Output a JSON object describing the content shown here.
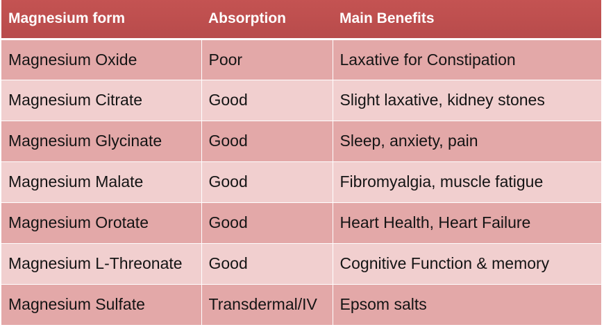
{
  "table": {
    "headers": [
      "Magnesium form",
      "Absorption",
      "Main Benefits"
    ],
    "rows": [
      [
        "Magnesium Oxide",
        "Poor",
        "Laxative for Constipation"
      ],
      [
        "Magnesium Citrate",
        "Good",
        "Slight laxative, kidney stones"
      ],
      [
        "Magnesium Glycinate",
        "Good",
        "Sleep, anxiety, pain"
      ],
      [
        "Magnesium Malate",
        "Good",
        "Fibromyalgia, muscle fatigue"
      ],
      [
        "Magnesium Orotate",
        "Good",
        "Heart Health, Heart Failure"
      ],
      [
        "Magnesium L-Threonate",
        "Good",
        "Cognitive Function & memory"
      ],
      [
        "Magnesium Sulfate",
        "Transdermal/IV",
        "Epsom salts"
      ]
    ]
  },
  "colors": {
    "header_background": "#bf4f4f",
    "header_text": "#ffffff",
    "row_odd_background": "#e3a8a8",
    "row_even_background": "#f1cfcf"
  }
}
